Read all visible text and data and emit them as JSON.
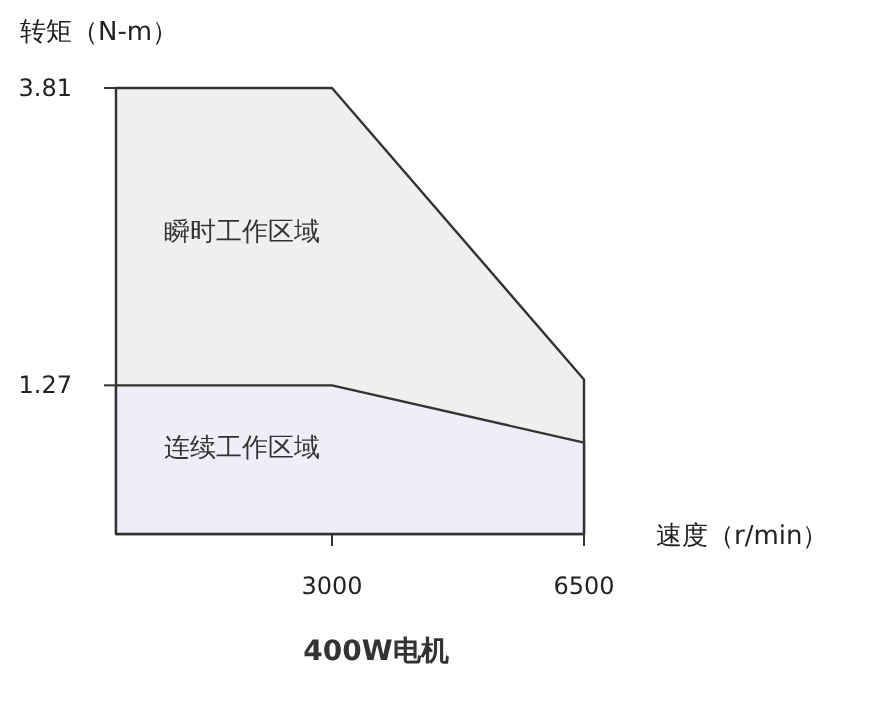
{
  "chart_data": {
    "type": "area",
    "title": "400W电机",
    "xlabel": "速度（r/min）",
    "ylabel": "转矩（N-m）",
    "x": [
      0,
      3000,
      6500
    ],
    "series": [
      {
        "color": "#efefed",
        "values": [
          3.81,
          3.81,
          1.32
        ]
      },
      {
        "color": "#eeeef8",
        "values": [
          1.27,
          1.27,
          0.78
        ]
      }
    ],
    "xlim": [
      0,
      6500
    ],
    "ylim": [
      0,
      3.81
    ],
    "xticks": [
      3000,
      6500
    ],
    "yticks": [
      1.27,
      3.81
    ],
    "annotations": [
      "瞬时工作区域",
      "连续工作区域"
    ]
  }
}
